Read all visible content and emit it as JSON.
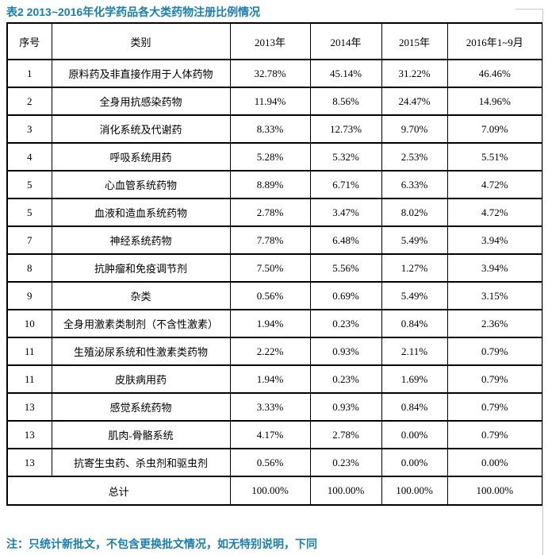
{
  "title": "表2 2013~2016年化学药品各大类药物注册比例情况",
  "note": "注：只统计新批文，不包含更换批文情况，如无特别说明，下同",
  "colors": {
    "accent_teal": "#1a7fae",
    "table_border": "#000000",
    "page_edge_line": "#c9c9c9"
  },
  "table": {
    "headers": [
      "序号",
      "类别",
      "2013年",
      "2014年",
      "2015年",
      "2016年1~9月"
    ],
    "rows": [
      {
        "no": "1",
        "category": "原料药及非直接作用于人体药物",
        "values": [
          "32.78%",
          "45.14%",
          "31.22%",
          "46.46%"
        ]
      },
      {
        "no": "2",
        "category": "全身用抗感染药物",
        "values": [
          "11.94%",
          "8.56%",
          "24.47%",
          "14.96%"
        ]
      },
      {
        "no": "3",
        "category": "消化系统及代谢药",
        "values": [
          "8.33%",
          "12.73%",
          "9.70%",
          "7.09%"
        ]
      },
      {
        "no": "4",
        "category": "呼吸系统用药",
        "values": [
          "5.28%",
          "5.32%",
          "2.53%",
          "5.51%"
        ]
      },
      {
        "no": "5",
        "category": "心血管系统药物",
        "values": [
          "8.89%",
          "6.71%",
          "6.33%",
          "4.72%"
        ]
      },
      {
        "no": "5",
        "category": "血液和造血系统药物",
        "values": [
          "2.78%",
          "3.47%",
          "8.02%",
          "4.72%"
        ]
      },
      {
        "no": "7",
        "category": "神经系统药物",
        "values": [
          "7.78%",
          "6.48%",
          "5.49%",
          "3.94%"
        ]
      },
      {
        "no": "8",
        "category": "抗肿瘤和免疫调节剂",
        "values": [
          "7.50%",
          "5.56%",
          "1.27%",
          "3.94%"
        ]
      },
      {
        "no": "9",
        "category": "杂类",
        "values": [
          "0.56%",
          "0.69%",
          "5.49%",
          "3.15%"
        ]
      },
      {
        "no": "10",
        "category": "全身用激素类制剂（不含性激素）",
        "values": [
          "1.94%",
          "0.23%",
          "0.84%",
          "2.36%"
        ]
      },
      {
        "no": "11",
        "category": "生殖泌尿系统和性激素类药物",
        "values": [
          "2.22%",
          "0.93%",
          "2.11%",
          "0.79%"
        ]
      },
      {
        "no": "11",
        "category": "皮肤病用药",
        "values": [
          "1.94%",
          "0.23%",
          "1.69%",
          "0.79%"
        ]
      },
      {
        "no": "13",
        "category": "感觉系统药物",
        "values": [
          "3.33%",
          "0.93%",
          "0.84%",
          "0.79%"
        ]
      },
      {
        "no": "13",
        "category": "肌肉-骨骼系统",
        "values": [
          "4.17%",
          "2.78%",
          "0.00%",
          "0.79%"
        ]
      },
      {
        "no": "13",
        "category": "抗寄生虫药、杀虫剂和驱虫剂",
        "values": [
          "0.56%",
          "0.23%",
          "0.00%",
          "0.00%"
        ]
      }
    ],
    "total": {
      "label": "总计",
      "values": [
        "100.00%",
        "100.00%",
        "100.00%",
        "100.00%"
      ]
    }
  }
}
